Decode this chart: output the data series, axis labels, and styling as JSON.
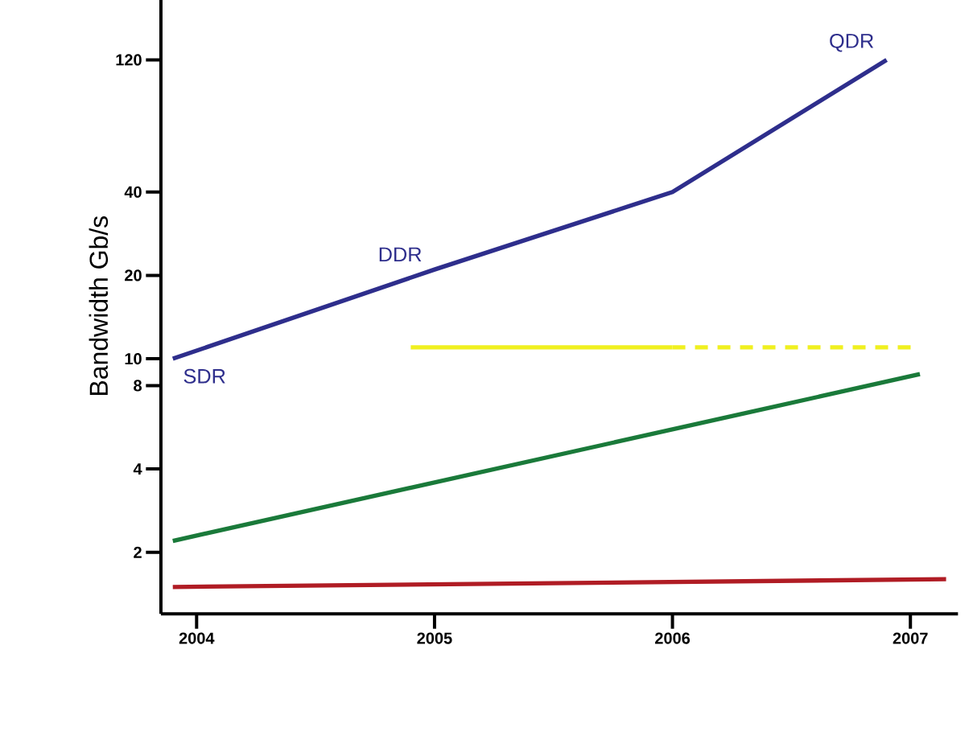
{
  "chart_data": {
    "type": "line",
    "ylabel": "Bandwidth Gb/s",
    "xlim": [
      2003.85,
      2007.2
    ],
    "xticks": [
      2004,
      2005,
      2006,
      2007
    ],
    "ylim": [
      1.2,
      200
    ],
    "yticks": [
      2,
      4,
      8,
      10,
      20,
      40,
      120
    ],
    "log": "y",
    "grid": false,
    "marker": "none",
    "series": [
      {
        "color": "#2e2e8c",
        "x": [
          2003.9,
          2005,
          2006,
          2006.9
        ],
        "values": [
          10,
          21,
          40,
          120
        ],
        "line_style": "solid"
      },
      {
        "color": "#f0f020",
        "x": [
          2004.9,
          2006
        ],
        "values": [
          11,
          11
        ],
        "line_style": "solid"
      },
      {
        "color": "#f0f020",
        "x": [
          2006,
          2007.02
        ],
        "values": [
          11,
          11
        ],
        "line_style": "dashed"
      },
      {
        "color": "#1a7a3a",
        "x": [
          2003.9,
          2007.04
        ],
        "values": [
          2.2,
          8.8
        ],
        "line_style": "solid"
      },
      {
        "color": "#b01c24",
        "x": [
          2003.9,
          2007.15
        ],
        "values": [
          1.5,
          1.6
        ],
        "line_style": "solid"
      }
    ],
    "annotations": [
      {
        "text": "SDR",
        "x": 2003.9,
        "y": 10
      },
      {
        "text": "DDR",
        "x": 2005,
        "y": 21
      },
      {
        "text": "QDR",
        "x": 2006.9,
        "y": 120
      }
    ]
  }
}
